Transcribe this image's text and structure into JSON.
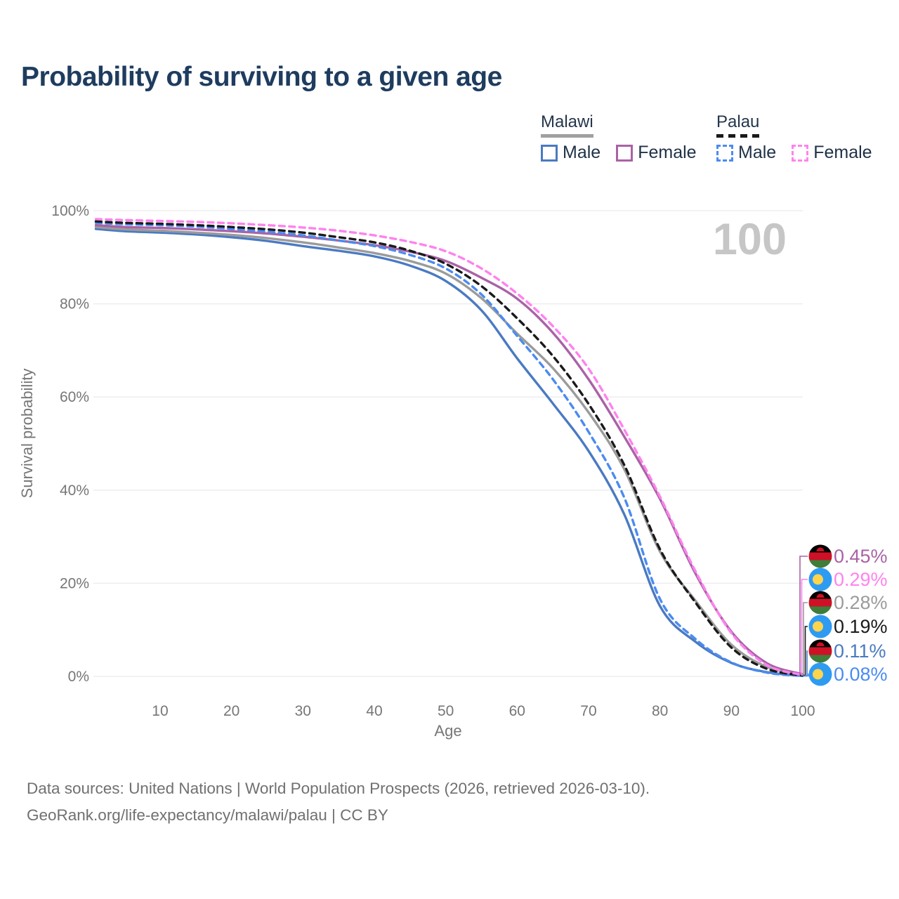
{
  "title": "Probability of surviving to a given age",
  "watermark_age": "100",
  "legend": {
    "groups": [
      {
        "label": "Malawi",
        "line_style": "solid",
        "line_color": "#a0a0a0",
        "items": [
          {
            "label": "Male",
            "color": "#4a7ac2"
          },
          {
            "label": "Female",
            "color": "#aa62a6"
          }
        ]
      },
      {
        "label": "Palau",
        "line_style": "dashed",
        "line_color": "#1a1a1a",
        "items": [
          {
            "label": "Male",
            "color": "#4b8bf0"
          },
          {
            "label": "Female",
            "color": "#ff82ee"
          }
        ]
      }
    ]
  },
  "chart_data": {
    "type": "line",
    "title": "Probability of surviving to a given age",
    "xlabel": "Age",
    "ylabel": "Survival probability",
    "xlim": [
      0,
      100
    ],
    "ylim": [
      0,
      100
    ],
    "grid": "horizontal",
    "x_ticks": [
      10,
      20,
      30,
      40,
      50,
      60,
      70,
      80,
      90,
      100
    ],
    "y_tick_labels": [
      "0%",
      "20%",
      "40%",
      "60%",
      "80%",
      "100%"
    ],
    "legend_position": "top-right",
    "ages": [
      1,
      5,
      10,
      15,
      20,
      25,
      30,
      35,
      40,
      45,
      50,
      55,
      60,
      65,
      70,
      75,
      80,
      85,
      90,
      95,
      100
    ],
    "series": [
      {
        "name": "Malawi Male",
        "country": "Malawi",
        "sex": "Male",
        "color": "#4a7ac2",
        "dashed": false,
        "end_label": "0.11%",
        "values": [
          96.1,
          95.6,
          95.3,
          94.9,
          94.3,
          93.5,
          92.4,
          91.4,
          90.2,
          88.2,
          84.9,
          78.6,
          68.3,
          58.6,
          48.4,
          34.8,
          15.1,
          7.4,
          2.9,
          0.9,
          0.11
        ]
      },
      {
        "name": "Malawi Both Sexes",
        "country": "Malawi",
        "sex": "All",
        "color": "#9b9b9b",
        "dashed": false,
        "end_label": "0.28%",
        "values": [
          96.5,
          96.0,
          95.7,
          95.3,
          94.8,
          94.1,
          93.2,
          92.1,
          90.9,
          89.2,
          86.5,
          81.2,
          73.6,
          66.2,
          56.7,
          44.5,
          26.8,
          16.2,
          6.8,
          2.0,
          0.28
        ]
      },
      {
        "name": "Malawi Female",
        "country": "Malawi",
        "sex": "Female",
        "color": "#aa62a6",
        "dashed": false,
        "end_label": "0.45%",
        "values": [
          96.9,
          96.5,
          96.3,
          96.0,
          95.6,
          95.1,
          94.4,
          93.6,
          92.6,
          91.2,
          89.2,
          85.6,
          81.1,
          73.8,
          63.8,
          51.5,
          38.1,
          22.0,
          9.6,
          2.8,
          0.45
        ]
      },
      {
        "name": "Palau Male",
        "country": "Palau",
        "sex": "Male",
        "color": "#4b8bf0",
        "dashed": true,
        "end_label": "0.08%",
        "values": [
          97.4,
          97.1,
          96.9,
          96.6,
          96.1,
          95.5,
          94.7,
          93.6,
          92.4,
          90.5,
          87.6,
          82.0,
          73.1,
          63.8,
          52.5,
          38.4,
          16.6,
          8.0,
          3.0,
          0.8,
          0.08
        ]
      },
      {
        "name": "Palau Both Sexes",
        "country": "Palau",
        "sex": "All",
        "color": "#1a1a1a",
        "dashed": true,
        "end_label": "0.19%",
        "values": [
          97.7,
          97.4,
          97.2,
          96.9,
          96.5,
          96.0,
          95.3,
          94.3,
          93.2,
          91.4,
          88.6,
          83.8,
          76.9,
          68.8,
          58.5,
          45.4,
          27.3,
          15.8,
          6.2,
          1.6,
          0.19
        ]
      },
      {
        "name": "Palau Female",
        "country": "Palau",
        "sex": "Female",
        "color": "#ff82ee",
        "dashed": true,
        "end_label": "0.29%",
        "values": [
          98.2,
          98.0,
          97.8,
          97.6,
          97.3,
          96.9,
          96.4,
          95.7,
          94.7,
          93.3,
          91.3,
          87.6,
          82.2,
          75.2,
          66.1,
          53.0,
          38.6,
          22.5,
          9.3,
          2.4,
          0.29
        ]
      }
    ]
  },
  "flags": {
    "malawi": {
      "black": "#000000",
      "red": "#ce1126",
      "green": "#3f7d3a",
      "sun": "#ce1126"
    },
    "palau": {
      "blue": "#2e9bf2",
      "yellow": "#ffd44d"
    }
  },
  "colors": {
    "title": "#1e3c5f",
    "axis_text": "#767676",
    "gridline": "#ebebeb",
    "watermark": "#c6c6c6",
    "footer": "#707070"
  },
  "footer": {
    "line1": "Data sources: United Nations | World Population Prospects (2026, retrieved 2026-03-10).",
    "line2": "GeoRank.org/life-expectancy/malawi/palau | CC BY"
  }
}
